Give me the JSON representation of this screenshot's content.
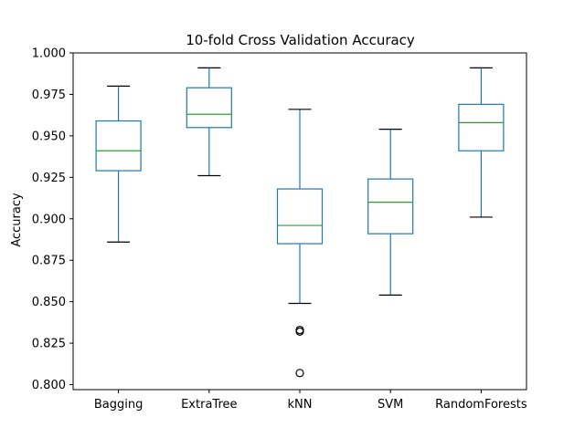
{
  "chart_data": {
    "type": "box",
    "title": "10-fold Cross Validation Accuracy",
    "xlabel": "",
    "ylabel": "Accuracy",
    "ylim": [
      0.797,
      1.0
    ],
    "yticks": [
      0.8,
      0.825,
      0.85,
      0.875,
      0.9,
      0.925,
      0.95,
      0.975,
      1.0
    ],
    "ytick_labels": [
      "0.800",
      "0.825",
      "0.850",
      "0.875",
      "0.900",
      "0.925",
      "0.950",
      "0.975",
      "1.000"
    ],
    "grid": false,
    "categories": [
      "Bagging",
      "ExtraTree",
      "kNN",
      "SVM",
      "RandomForests"
    ],
    "boxes": [
      {
        "category": "Bagging",
        "whisker_low": 0.886,
        "q1": 0.929,
        "median": 0.941,
        "q3": 0.959,
        "whisker_high": 0.98,
        "outliers": []
      },
      {
        "category": "ExtraTree",
        "whisker_low": 0.926,
        "q1": 0.955,
        "median": 0.963,
        "q3": 0.979,
        "whisker_high": 0.991,
        "outliers": []
      },
      {
        "category": "kNN",
        "whisker_low": 0.849,
        "q1": 0.885,
        "median": 0.896,
        "q3": 0.918,
        "whisker_high": 0.966,
        "outliers": [
          0.833,
          0.832,
          0.807
        ]
      },
      {
        "category": "SVM",
        "whisker_low": 0.854,
        "q1": 0.891,
        "median": 0.91,
        "q3": 0.924,
        "whisker_high": 0.954,
        "outliers": []
      },
      {
        "category": "RandomForests",
        "whisker_low": 0.901,
        "q1": 0.941,
        "median": 0.958,
        "q3": 0.969,
        "whisker_high": 0.991,
        "outliers": []
      }
    ],
    "colors": {
      "box": "#1f77b4",
      "median": "#2ca02c",
      "cap": "#000000",
      "outlier": "#000000",
      "axes": "#000000"
    }
  }
}
